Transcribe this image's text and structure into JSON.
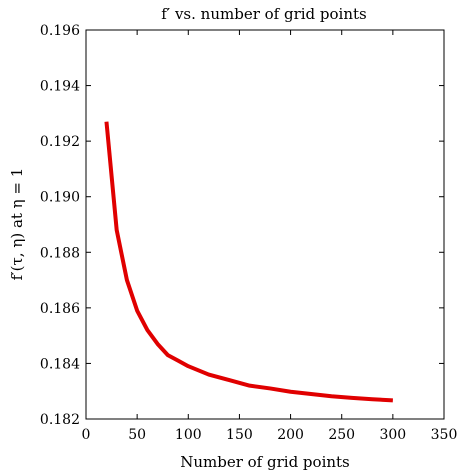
{
  "chart_data": {
    "type": "line",
    "title": "f′ vs. number of grid points",
    "xlabel": "Number of grid points",
    "ylabel": "f′(τ, η) at η = 1",
    "xlim": [
      0,
      350
    ],
    "ylim": [
      0.182,
      0.196
    ],
    "xticks": [
      "0",
      "50",
      "100",
      "150",
      "200",
      "250",
      "300",
      "350"
    ],
    "yticks": [
      "0.182",
      "0.184",
      "0.186",
      "0.188",
      "0.190",
      "0.192",
      "0.194",
      "0.196"
    ],
    "grid": false,
    "series": [
      {
        "color": "#e00000",
        "x": [
          20,
          30,
          40,
          50,
          60,
          70,
          80,
          90,
          100,
          120,
          140,
          160,
          180,
          200,
          220,
          240,
          260,
          280,
          300
        ],
        "y": [
          0.1927,
          0.1888,
          0.187,
          0.1859,
          0.1852,
          0.1847,
          0.1843,
          0.1841,
          0.1839,
          0.1836,
          0.1834,
          0.1832,
          0.1831,
          0.18298,
          0.1829,
          0.18282,
          0.18276,
          0.18271,
          0.18267
        ]
      }
    ]
  }
}
